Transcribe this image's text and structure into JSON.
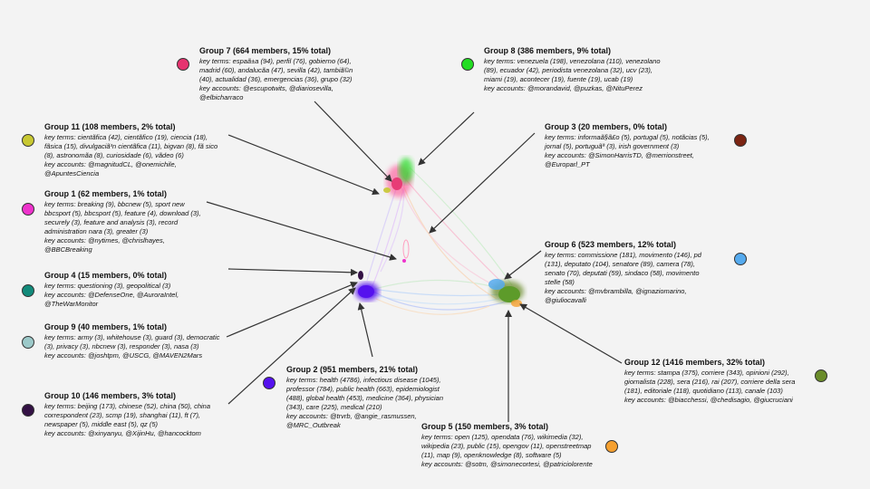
{
  "groups": [
    {
      "id": "g7",
      "title": "Group 7 (664 members, 15% total)",
      "terms": "key terms: espaã±a (94), perfil (76), gobierno (64), madrid (60), andalucãa (47), sevilla (42), tambiã©n (40), actualidad (36), emergencias (36), grupo (32)",
      "accounts": "key accounts: @escupotwits, @diariosevilla, @elbicharraco",
      "color": "#e6336f"
    },
    {
      "id": "g8",
      "title": "Group 8 (386 members, 9% total)",
      "terms": "key terms: venezuela (198), venezolana (110), venezolano (89), ecuador (42), periodista venezolana (32), ucv (23), miami (19), acontecer (19), fuente (19), ucab (19)",
      "accounts": "key accounts: @morandavid, @puzkas, @NituPerez",
      "color": "#22dd22"
    },
    {
      "id": "g11",
      "title": "Group 11 (108 members, 2% total)",
      "terms": "key terms: cientãfica (42), cientãfico (19), ciencia (18), fãsica (15), divulgaciã³n cientãfica (11), bigvan (8), fã sico (8), astronomãa (8), curiosidade (6), vãdeo (6)",
      "accounts": "key accounts: @magnitudCL, @onemichile, @ApuntesCiencia",
      "color": "#c8c832"
    },
    {
      "id": "g3",
      "title": "Group 3 (20 members, 0% total)",
      "terms": "key terms: informaã§ã£o (5), portugal (5), notãcias (5), jornal (5), portuguãª (3), irish government (3)",
      "accounts": "key accounts: @SimonHarrisTD, @merrionstreet, @Europarl_PT",
      "color": "#7b2412"
    },
    {
      "id": "g1",
      "title": "Group 1 (62 members, 1% total)",
      "terms": "key terms: breaking (9), bbcnew (5), sport new bbcsport (5), bbcsport (5), feature (4), download (3), securely (3), feature and analysis (3), record administration nara (3), greater (3)",
      "accounts": "key accounts: @nytimes, @chrislhayes, @BBCBreaking",
      "color": "#ee33cc"
    },
    {
      "id": "g6",
      "title": "Group 6 (523 members, 12% total)",
      "terms": "key terms: commissione (181), movimento (146), pd (131), deputato (104), senatore (89), camera (78), senato (70), deputati (59), sindaco (58), movimento stelle (58)",
      "accounts": "key accounts: @mvbrambilla, @ignaziomarino, @giuliocavalli",
      "color": "#55aaee"
    },
    {
      "id": "g4",
      "title": "Group 4 (15 members, 0% total)",
      "terms": "key terms: questioning (3), geopolitical (3)",
      "accounts": "key accounts: @DefenseOne, @AuroraIntel, @TheWarMonitor",
      "color": "#128a7a"
    },
    {
      "id": "g9",
      "title": "Group 9 (40 members, 1% total)",
      "terms": "key terms: army (3), whitehouse (3), guard (3), democratic (3), privacy (3), nbcnew (3), responder (3), nasa (3)",
      "accounts": "key accounts: @joshtpm, @USCG, @MAVEN2Mars",
      "color": "#9cc9c9"
    },
    {
      "id": "g2",
      "title": "Group 2 (951 members, 21% total)",
      "terms": "key terms: health (4786), infectious disease (1045), professor (784), public health (663), epidemiologist (488), global health (453), medicine (364), physician (343), care (225), medical (210)",
      "accounts": "key accounts: @trvrb, @angie_rasmussen, @MRC_Outbreak",
      "color": "#5511ee"
    },
    {
      "id": "g12",
      "title": "Group 12 (1416 members, 32% total)",
      "terms": "key terms: stampa (375), corriere (343), opinioni (292), giornalista (228), sera (216), rai (207), corriere della sera (181), editoriale (118), quotidiano (113), canale (103)",
      "accounts": "key accounts: @biacchessi, @chedisagio, @giucruciani",
      "color": "#6a8c2a"
    },
    {
      "id": "g10",
      "title": "Group 10 (146 members, 3% total)",
      "terms": "key terms: beijing (173), chinese (52), china (50), china correspondent (23), scmp (19), shanghai (11), ft (7), newspaper (5), middle east (5), qz (5)",
      "accounts": "key accounts: @xinyanyu, @XijinHu, @hancocktom",
      "color": "#331144"
    },
    {
      "id": "g5",
      "title": "Group 5 (150 members, 3% total)",
      "terms": "key terms: open (125), opendata (76), wikimedia (32), wikipedia (23), public (15), opengov (11), openstreetmap (11), map (9), openknowledge (8), software (5)",
      "accounts": "key accounts: @sotm, @simonecortesi, @patriciolorente",
      "color": "#f5a030"
    }
  ]
}
